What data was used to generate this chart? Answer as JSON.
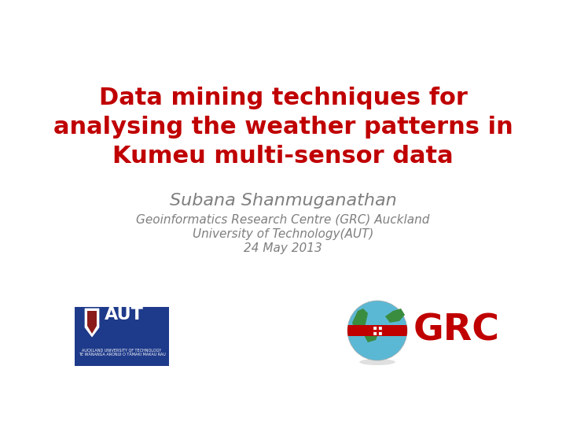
{
  "title_line1": "Data mining techniques for",
  "title_line2": "analysing the weather patterns in",
  "title_line3": "Kumeu multi-sensor data",
  "title_color": "#c00000",
  "title_fontsize": 22,
  "title_weight": "bold",
  "author": "Subana Shanmuganathan",
  "author_color": "#7f7f7f",
  "author_fontsize": 16,
  "author_style": "italic",
  "affil1": "Geoinformatics Research Centre (GRC) Auckland",
  "affil2": "University of Technology(AUT)",
  "date": "24 May 2013",
  "affil_color": "#7f7f7f",
  "affil_fontsize": 11,
  "affil_style": "italic",
  "background_color": "#ffffff"
}
